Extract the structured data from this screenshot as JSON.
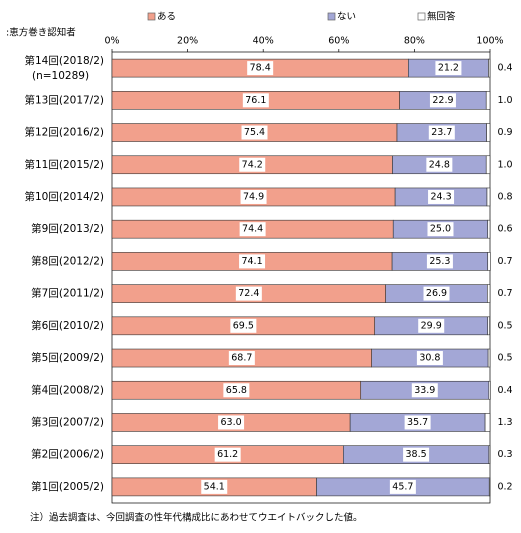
{
  "chart_data": {
    "type": "stacked-bar-horizontal",
    "subtitle": ":恵方巻き認知者",
    "footnote": "注）過去調査は、今回調査の性年代構成比にあわせてウエイトバックした値。",
    "sample_note": "(n=10289)",
    "categories": [
      "第14回(2018/2)",
      "第13回(2017/2)",
      "第12回(2016/2)",
      "第11回(2015/2)",
      "第10回(2014/2)",
      "第9回(2013/2)",
      "第8回(2012/2)",
      "第7回(2011/2)",
      "第6回(2010/2)",
      "第5回(2009/2)",
      "第4回(2008/2)",
      "第3回(2007/2)",
      "第2回(2006/2)",
      "第1回(2005/2)"
    ],
    "series": [
      {
        "name": "ある",
        "color": "#f2a08c",
        "values": [
          78.4,
          76.1,
          75.4,
          74.2,
          74.9,
          74.4,
          74.1,
          72.4,
          69.5,
          68.7,
          65.8,
          63.0,
          61.2,
          54.1
        ],
        "value_labels": [
          "78.4",
          "76.1",
          "75.4",
          "74.2",
          "74.9",
          "74.4",
          "74.1",
          "72.4",
          "69.5",
          "68.7",
          "65.8",
          "63.0",
          "61.2",
          "54.1"
        ]
      },
      {
        "name": "ない",
        "color": "#a3a7d6",
        "values": [
          21.2,
          22.9,
          23.7,
          24.8,
          24.3,
          25.0,
          25.3,
          26.9,
          29.9,
          30.8,
          33.9,
          35.7,
          38.5,
          45.7
        ],
        "value_labels": [
          "21.2",
          "22.9",
          "23.7",
          "24.8",
          "24.3",
          "25.0",
          "25.3",
          "26.9",
          "29.9",
          "30.8",
          "33.9",
          "35.7",
          "38.5",
          "45.7"
        ]
      },
      {
        "name": "無回答",
        "color": "#ffffff",
        "values": [
          0.4,
          1.0,
          0.9,
          1.0,
          0.8,
          0.6,
          0.7,
          0.7,
          0.5,
          0.5,
          0.4,
          1.3,
          0.3,
          0.2
        ],
        "value_labels": [
          "0.4",
          "1.0",
          "0.9",
          "1.0",
          "0.8",
          "0.6",
          "0.7",
          "0.7",
          "0.5",
          "0.5",
          "0.4",
          "1.3",
          "0.3",
          "0.2"
        ]
      }
    ],
    "xlim": [
      0,
      100
    ],
    "xticks": [
      {
        "value": 0,
        "label": "0%"
      },
      {
        "value": 20,
        "label": "20%"
      },
      {
        "value": 40,
        "label": "40%"
      },
      {
        "value": 60,
        "label": "60%"
      },
      {
        "value": 80,
        "label": "80%"
      },
      {
        "value": 100,
        "label": "100%"
      }
    ]
  }
}
